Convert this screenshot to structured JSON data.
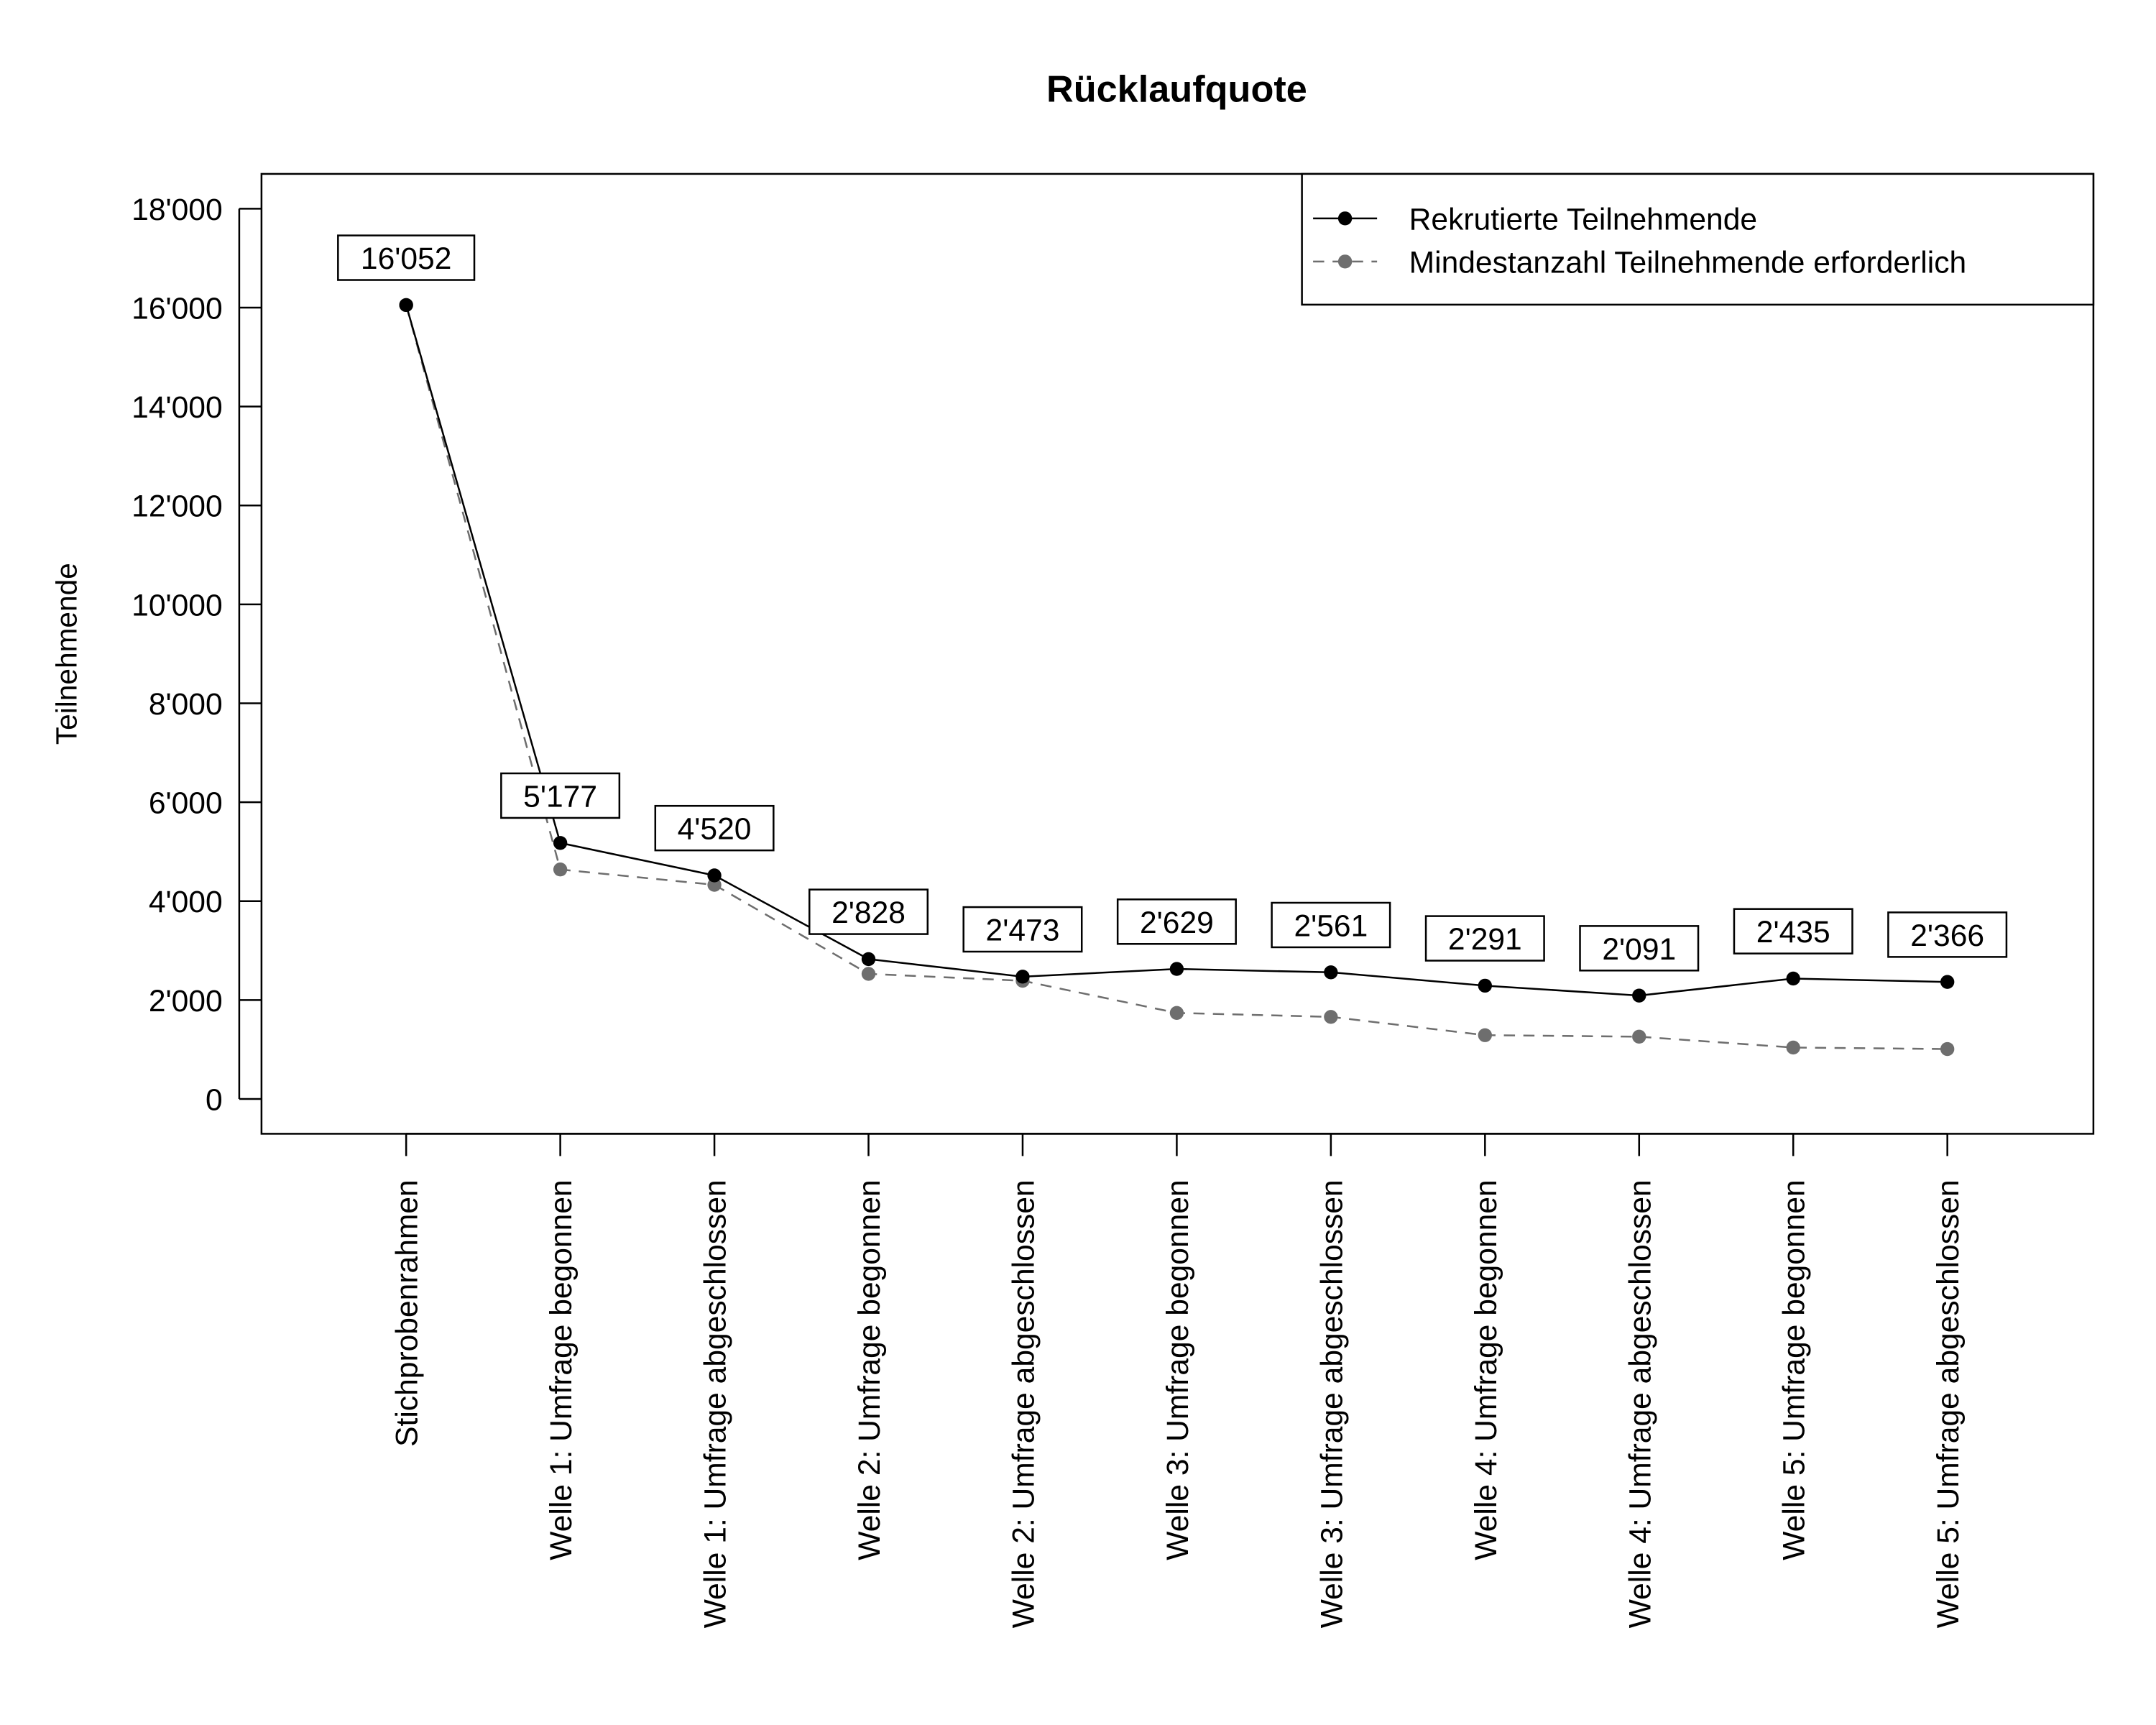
{
  "chart_data": {
    "type": "line",
    "title": "Rücklaufquote",
    "xlabel": "",
    "ylabel": "Teilnehmende",
    "ylim": [
      0,
      18000
    ],
    "yticks": [
      0,
      2000,
      4000,
      6000,
      8000,
      10000,
      12000,
      14000,
      16000,
      18000
    ],
    "ytick_labels": [
      "0",
      "2'000",
      "4'000",
      "6'000",
      "8'000",
      "10'000",
      "12'000",
      "14'000",
      "16'000",
      "18'000"
    ],
    "categories": [
      "Stichprobenrahmen",
      "Welle 1: Umfrage begonnen",
      "Welle 1: Umfrage abgeschlossen",
      "Welle 2: Umfrage begonnen",
      "Welle 2: Umfrage abgeschlossen",
      "Welle 3: Umfrage begonnen",
      "Welle 3: Umfrage abgeschlossen",
      "Welle 4: Umfrage begonnen",
      "Welle 4: Umfrage abgeschlossen",
      "Welle 5: Umfrage begonnen",
      "Welle 5: Umfrage abgeschlossen"
    ],
    "series": [
      {
        "name": "Rekrutierte Teilnehmende",
        "color": "#000000",
        "style": "solid",
        "values": [
          16052,
          5177,
          4520,
          2828,
          2473,
          2629,
          2561,
          2291,
          2091,
          2435,
          2366
        ],
        "labels": [
          "16'052",
          "5'177",
          "4'520",
          "2'828",
          "2'473",
          "2'629",
          "2'561",
          "2'291",
          "2'091",
          "2'435",
          "2'366"
        ]
      },
      {
        "name": "Mindestanzahl Teilnehmende erforderlich",
        "color": "#6e6e6e",
        "style": "dashed",
        "values": [
          16052,
          4640,
          4330,
          2530,
          2390,
          1740,
          1660,
          1290,
          1260,
          1040,
          1010
        ]
      }
    ],
    "legend_position": "top-right",
    "grid": false
  }
}
